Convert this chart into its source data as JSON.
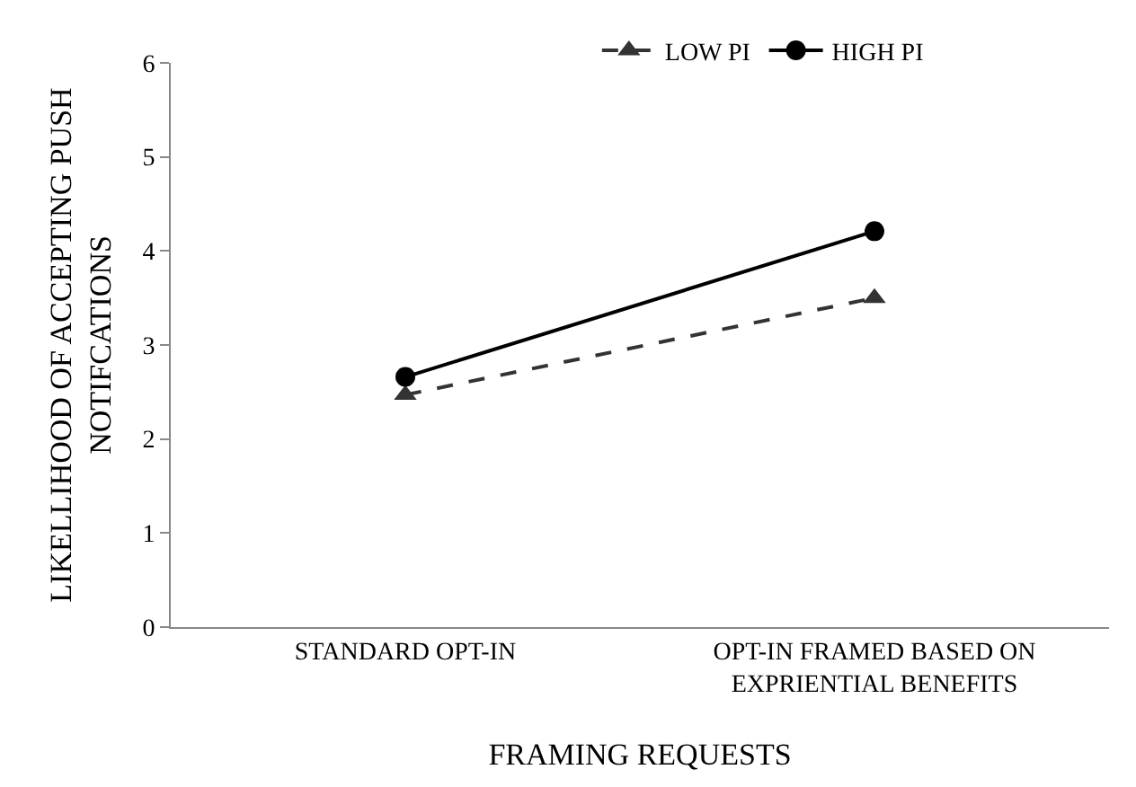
{
  "chart_data": {
    "type": "line",
    "xlabel": "FRAMING REQUESTS",
    "ylabel": "LIKELLIHOOD OF ACCEPTING PUSH NOTIFCATIONS",
    "categories": [
      "STANDARD OPT-IN",
      "OPT-IN FRAMED BASED ON EXPRIENTIAL BENEFITS"
    ],
    "series": [
      {
        "name": "LOW PI",
        "color": "#333333",
        "values": [
          2.47,
          3.5
        ],
        "marker": "triangle",
        "line_style": "dashed"
      },
      {
        "name": "HIGH PI",
        "color": "#000000",
        "values": [
          2.66,
          4.21
        ],
        "marker": "circle",
        "line_style": "solid"
      }
    ],
    "ylim": [
      0,
      6
    ],
    "yticks": [
      0,
      1,
      2,
      3,
      4,
      5,
      6
    ],
    "legend": "top"
  }
}
